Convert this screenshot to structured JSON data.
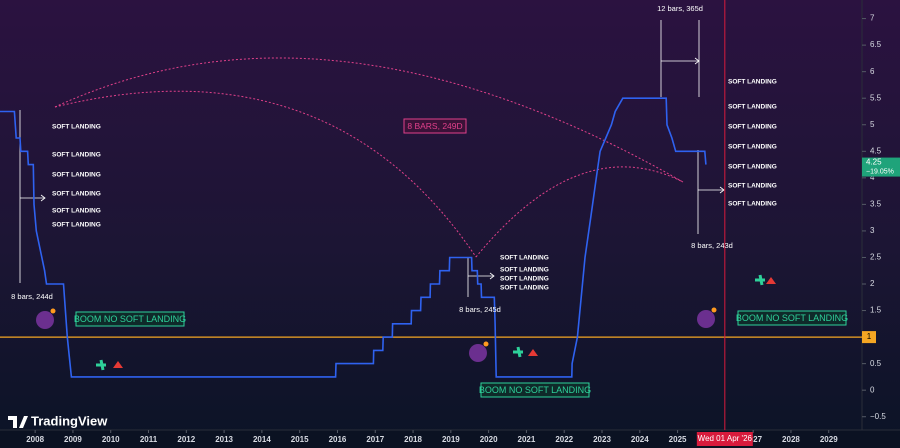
{
  "chart_data": {
    "type": "line",
    "x": [
      2007.07,
      2007.45,
      2007.5,
      2007.6,
      2007.62,
      2007.8,
      2007.82,
      2007.95,
      2007.97,
      2008.03,
      2008.25,
      2008.3,
      2008.75,
      2008.8,
      2008.85,
      2008.96,
      2015.95,
      2015.96,
      2016.95,
      2016.96,
      2017.2,
      2017.21,
      2017.45,
      2017.46,
      2017.95,
      2017.96,
      2018.2,
      2018.21,
      2018.45,
      2018.46,
      2018.7,
      2018.71,
      2018.96,
      2018.97,
      2019.55,
      2019.56,
      2019.7,
      2019.71,
      2019.8,
      2019.81,
      2020.15,
      2020.17,
      2020.2,
      2022.2,
      2022.21,
      2022.35,
      2022.45,
      2022.55,
      2022.7,
      2022.85,
      2022.95,
      2023.1,
      2023.25,
      2023.35,
      2023.55,
      2024.7,
      2024.72,
      2024.85,
      2024.95,
      2025.72,
      2025.75
    ],
    "values": [
      5.25,
      5.25,
      4.75,
      4.75,
      4.5,
      4.5,
      4.25,
      4.25,
      3.5,
      3.0,
      2.25,
      2.0,
      2.0,
      1.5,
      1.0,
      0.25,
      0.25,
      0.5,
      0.5,
      0.75,
      0.75,
      1.0,
      1.0,
      1.25,
      1.25,
      1.5,
      1.5,
      1.75,
      1.75,
      2.0,
      2.0,
      2.25,
      2.25,
      2.5,
      2.5,
      2.25,
      2.25,
      2.0,
      2.0,
      1.75,
      1.75,
      1.25,
      0.25,
      0.25,
      0.5,
      1.0,
      1.75,
      2.5,
      3.25,
      4.0,
      4.5,
      4.75,
      5.0,
      5.25,
      5.5,
      5.5,
      5.0,
      4.75,
      4.5,
      4.5,
      4.25
    ],
    "color": "#2f62f0",
    "xlim": [
      2007.07,
      2029.88
    ],
    "xticks": [
      2008,
      2009,
      2010,
      2011,
      2012,
      2013,
      2014,
      2015,
      2016,
      2017,
      2018,
      2019,
      2020,
      2021,
      2022,
      2023,
      2024,
      2025,
      2027,
      2028,
      2029
    ],
    "ylim": [
      -0.75,
      7.35
    ],
    "yticks": [
      7,
      6.5,
      6,
      5.5,
      5,
      4.5,
      4,
      3.5,
      3,
      2.5,
      2,
      1.5,
      1,
      0.5,
      0,
      {
        "value": -0.5,
        "label": "−0.5"
      }
    ],
    "grid": false,
    "hline": 1,
    "last_price": 4.25,
    "last_change": "−19.05%",
    "crosshair": {
      "x": 2026.25,
      "label": "Wed 01 Apr '26"
    },
    "brand": "TradingView",
    "soft_landing_labels": [
      "SOFT LANDING",
      "SOFT LANDING",
      "SOFT LANDING",
      "SOFT LANDING",
      "SOFT LANDING",
      "SOFT LANDING",
      "SOFT LANDING",
      "SOFT LANDING",
      "SOFT LANDING",
      "SOFT LANDING",
      "SOFT LANDING",
      "SOFT LANDING",
      "SOFT LANDING",
      "SOFT LANDING",
      "SOFT LANDING",
      "SOFT LANDING",
      "SOFT LANDING"
    ],
    "boom_labels": [
      "BOOM NO SOFT LANDING",
      "BOOM NO SOFT LANDING",
      "BOOM NO SOFT LANDING"
    ],
    "measurements": [
      "8 bars, 244d",
      "8 bars, 245d",
      "8 bars, 243d",
      "12 bars, 365d"
    ],
    "arc_label": "8 BARS, 249D"
  }
}
